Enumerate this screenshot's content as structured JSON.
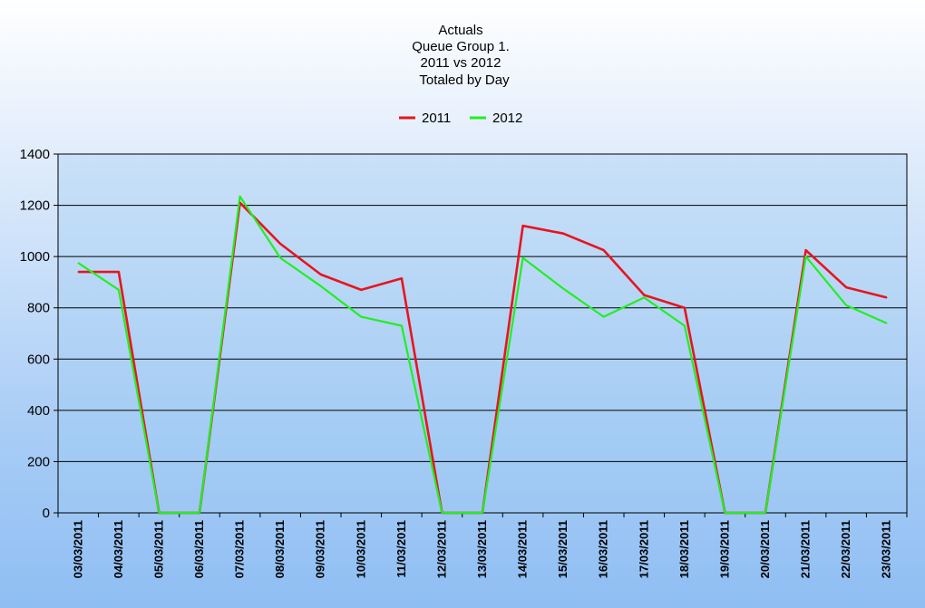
{
  "chart_data": {
    "type": "line",
    "title_lines": [
      "Actuals",
      "Queue Group 1.",
      "2011 vs 2012",
      "Totaled by Day"
    ],
    "xlabel": "",
    "ylabel": "",
    "ylim": [
      0,
      1400
    ],
    "yticks": [
      0,
      200,
      400,
      600,
      800,
      1000,
      1200,
      1400
    ],
    "grid": true,
    "legend": "top-center",
    "categories": [
      "03/03/2011",
      "04/03/2011",
      "05/03/2011",
      "06/03/2011",
      "07/03/2011",
      "08/03/2011",
      "09/03/2011",
      "10/03/2011",
      "11/03/2011",
      "12/03/2011",
      "13/03/2011",
      "14/03/2011",
      "15/03/2011",
      "16/03/2011",
      "17/03/2011",
      "18/03/2011",
      "19/03/2011",
      "20/03/2011",
      "21/03/2011",
      "22/03/2011",
      "23/03/2011"
    ],
    "series": [
      {
        "name": "2011",
        "color": "#e8141e",
        "values": [
          940,
          940,
          0,
          0,
          1210,
          1050,
          930,
          870,
          915,
          0,
          0,
          1120,
          1090,
          1025,
          850,
          800,
          0,
          0,
          1025,
          880,
          840
        ]
      },
      {
        "name": "2012",
        "color": "#22ee22",
        "values": [
          975,
          870,
          0,
          0,
          1235,
          995,
          885,
          765,
          730,
          0,
          0,
          995,
          875,
          765,
          840,
          730,
          0,
          0,
          1000,
          810,
          740
        ]
      }
    ]
  }
}
